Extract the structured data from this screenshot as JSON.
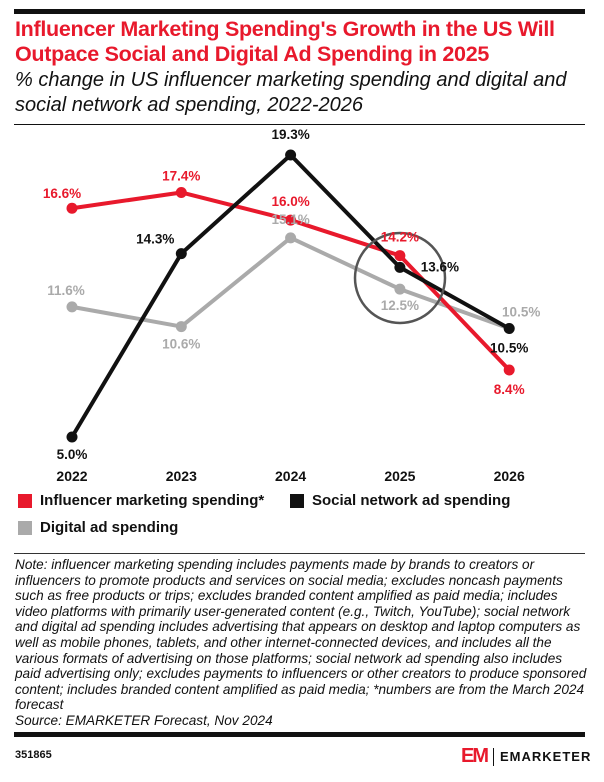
{
  "title": "Influencer Marketing Spending's Growth in the US Will Outpace Social and Digital Ad Spending in 2025",
  "subtitle": "% change in US influencer marketing spending and digital and social network ad spending, 2022-2026",
  "chart_data": {
    "type": "line",
    "categories": [
      "2022",
      "2023",
      "2024",
      "2025",
      "2026"
    ],
    "series": [
      {
        "name": "Influencer marketing spending*",
        "color": "#e8192c",
        "values": [
          16.6,
          17.4,
          16.0,
          14.2,
          8.4
        ],
        "labels": [
          "16.6%",
          "17.4%",
          "16.0%",
          "14.2%",
          "8.4%"
        ]
      },
      {
        "name": "Social network ad spending",
        "color": "#111111",
        "values": [
          5.0,
          14.3,
          19.3,
          13.6,
          10.5
        ],
        "labels": [
          "5.0%",
          "14.3%",
          "19.3%",
          "13.6%",
          "10.5%"
        ]
      },
      {
        "name": "Digital ad spending",
        "color": "#aaaaaa",
        "values": [
          11.6,
          10.6,
          15.1,
          12.5,
          10.5
        ],
        "labels": [
          "11.6%",
          "10.6%",
          "15.1%",
          "12.5%",
          "10.5%"
        ]
      }
    ],
    "highlight": "circle around 2025",
    "grid": false,
    "legend_position": "bottom"
  },
  "notes": "Note: influencer marketing spending includes payments made by brands to creators or influencers to promote products and services on social media; excludes noncash payments such as free products or trips; excludes branded content amplified as paid media; includes video platforms with primarily user-generated content (e.g., Twitch, YouTube); social network and digital ad spending includes advertising that appears on desktop and laptop computers as well as mobile phones, tablets, and other internet-connected devices, and includes all the various formats of advertising on those platforms; social network ad spending also includes paid advertising only; excludes payments to influencers or other creators to produce sponsored content; includes branded content amplified as paid media; *numbers are from the March 2024 forecast",
  "source": "Source: EMARKETER Forecast, Nov 2024",
  "chart_id": "351865",
  "logo": {
    "mark": "EM",
    "text": "EMARKETER"
  }
}
